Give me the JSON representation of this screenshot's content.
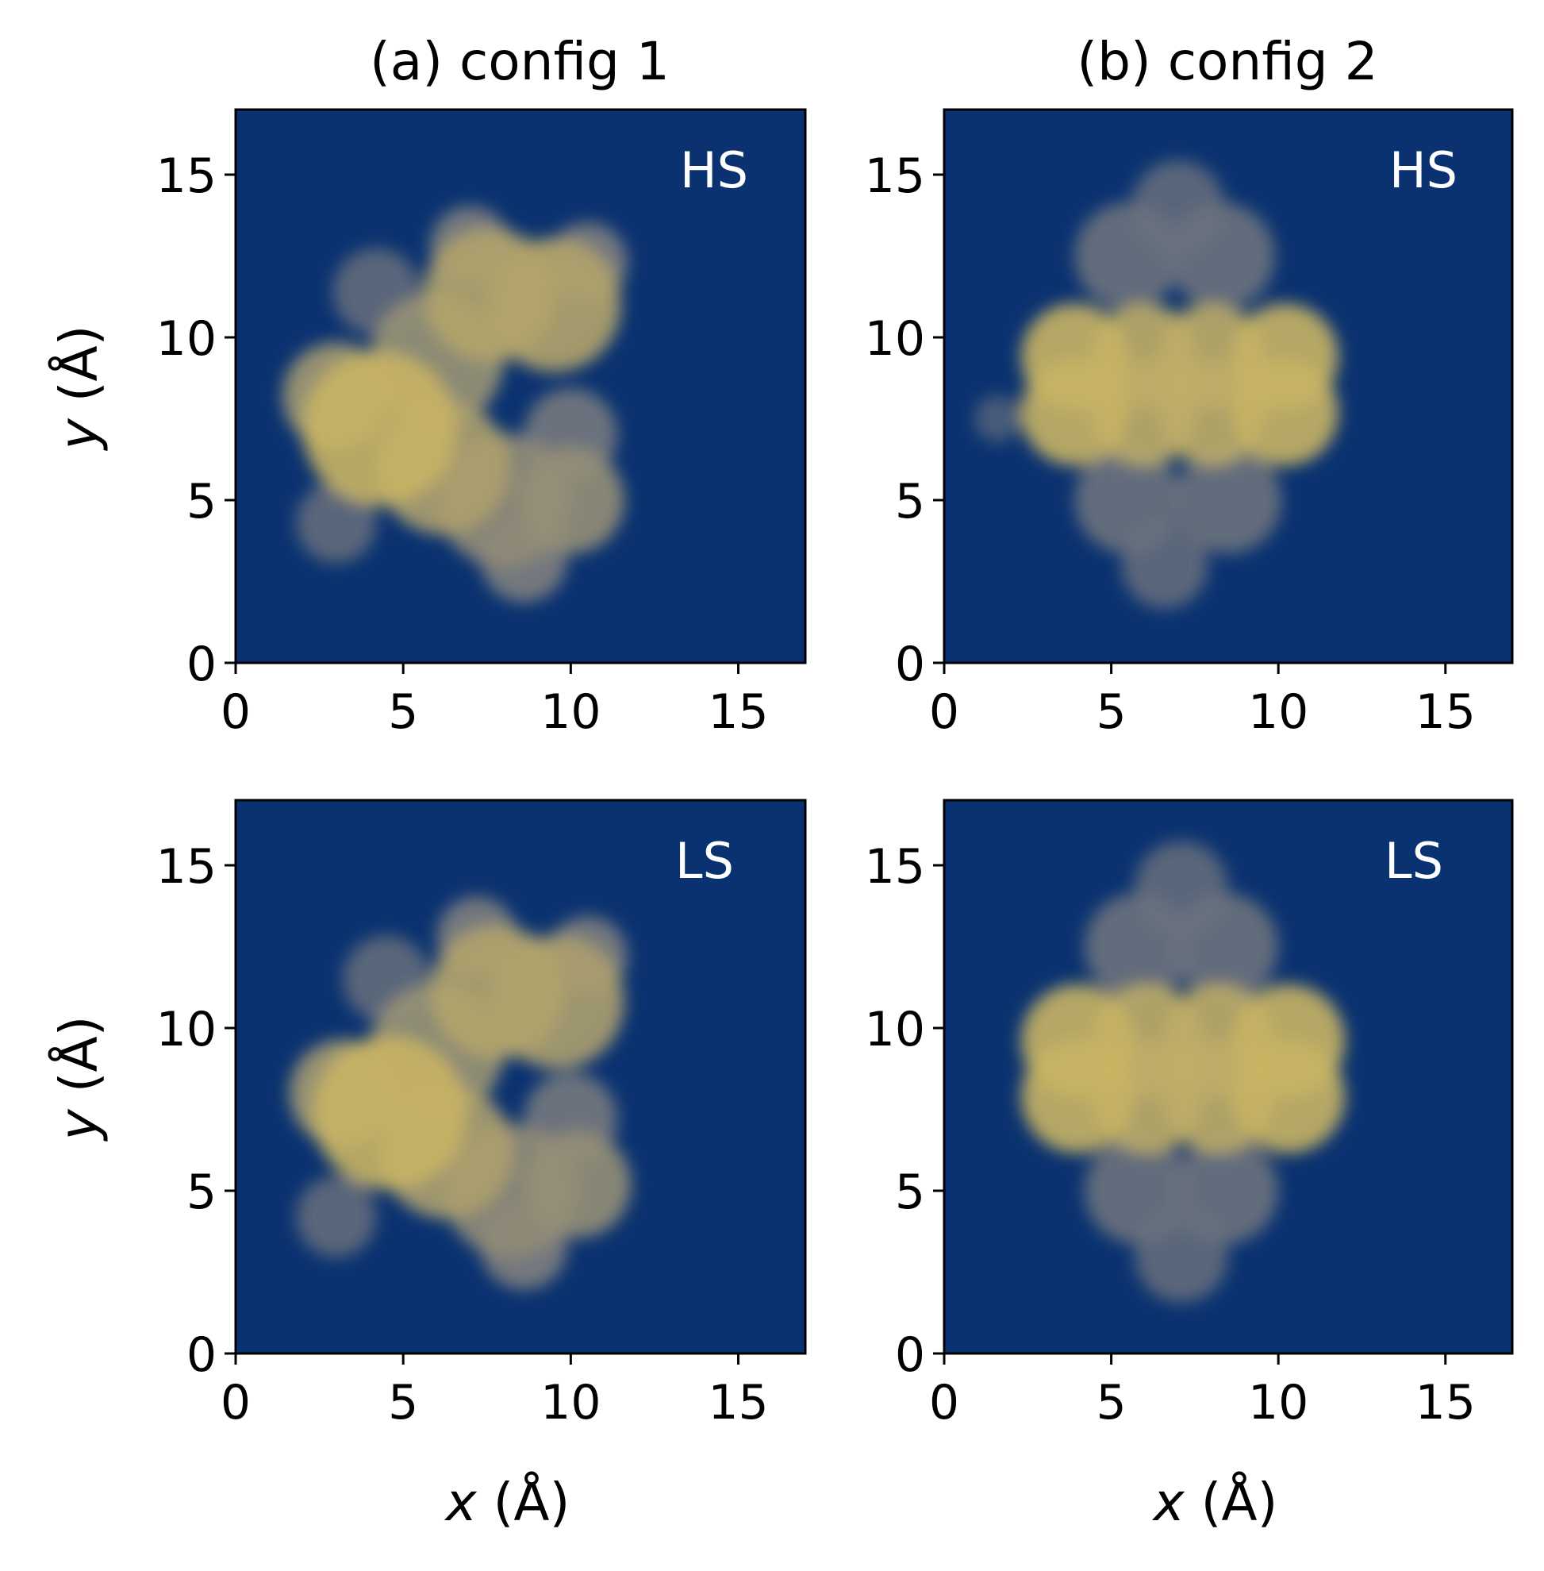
{
  "figure": {
    "column_titles": [
      "(a) config 1",
      "(b) config 2"
    ],
    "xlabel_var": "x",
    "xlabel_unit": " (Å)",
    "ylabel_var": "y",
    "ylabel_unit": " (Å)",
    "colors": {
      "background": "#0a3270",
      "high": "#c8b464",
      "mid": "#7f7f7f"
    }
  },
  "chart_data": [
    {
      "type": "heatmap",
      "panel": "(a) config 1",
      "state": "HS",
      "xlim": [
        0,
        17
      ],
      "ylim": [
        0,
        17
      ],
      "xticks": [
        0,
        5,
        10,
        15
      ],
      "yticks": [
        0,
        5,
        10,
        15
      ],
      "colormap": "cividis",
      "blobs": [
        {
          "x": 4.3,
          "y": 7.2,
          "r": 2.3,
          "v": 1.0
        },
        {
          "x": 6.2,
          "y": 6.0,
          "r": 2.0,
          "v": 0.85
        },
        {
          "x": 3.0,
          "y": 8.2,
          "r": 1.6,
          "v": 0.8
        },
        {
          "x": 7.6,
          "y": 11.3,
          "r": 2.0,
          "v": 0.88
        },
        {
          "x": 9.5,
          "y": 11.0,
          "r": 2.0,
          "v": 0.88
        },
        {
          "x": 6.0,
          "y": 9.3,
          "r": 2.0,
          "v": 0.75
        },
        {
          "x": 8.0,
          "y": 5.0,
          "r": 2.0,
          "v": 0.7
        },
        {
          "x": 10.0,
          "y": 5.0,
          "r": 1.6,
          "v": 0.72
        },
        {
          "x": 8.6,
          "y": 3.2,
          "r": 1.3,
          "v": 0.6
        },
        {
          "x": 3.0,
          "y": 4.3,
          "r": 1.2,
          "v": 0.45
        },
        {
          "x": 4.2,
          "y": 11.4,
          "r": 1.3,
          "v": 0.45
        },
        {
          "x": 10.0,
          "y": 7.0,
          "r": 1.4,
          "v": 0.55
        },
        {
          "x": 7.0,
          "y": 12.8,
          "r": 1.2,
          "v": 0.6
        },
        {
          "x": 10.5,
          "y": 12.3,
          "r": 1.2,
          "v": 0.6
        }
      ]
    },
    {
      "type": "heatmap",
      "panel": "(b) config 2",
      "state": "HS",
      "xlim": [
        0,
        17
      ],
      "ylim": [
        0,
        17
      ],
      "xticks": [
        0,
        5,
        10,
        15
      ],
      "yticks": [
        0,
        5,
        10,
        15
      ],
      "colormap": "cividis",
      "blobs": [
        {
          "x": 3.9,
          "y": 9.4,
          "r": 1.6,
          "v": 1.0
        },
        {
          "x": 6.0,
          "y": 9.4,
          "r": 1.6,
          "v": 0.95
        },
        {
          "x": 8.0,
          "y": 9.4,
          "r": 1.6,
          "v": 0.95
        },
        {
          "x": 10.2,
          "y": 9.4,
          "r": 1.6,
          "v": 1.0
        },
        {
          "x": 3.9,
          "y": 7.7,
          "r": 1.6,
          "v": 1.0
        },
        {
          "x": 6.0,
          "y": 7.7,
          "r": 1.6,
          "v": 0.95
        },
        {
          "x": 8.0,
          "y": 7.7,
          "r": 1.6,
          "v": 0.95
        },
        {
          "x": 10.2,
          "y": 7.7,
          "r": 1.6,
          "v": 1.0
        },
        {
          "x": 5.5,
          "y": 12.5,
          "r": 1.6,
          "v": 0.5
        },
        {
          "x": 8.3,
          "y": 12.5,
          "r": 1.6,
          "v": 0.5
        },
        {
          "x": 7.0,
          "y": 14.0,
          "r": 1.4,
          "v": 0.45
        },
        {
          "x": 5.5,
          "y": 5.0,
          "r": 1.6,
          "v": 0.5
        },
        {
          "x": 8.5,
          "y": 5.0,
          "r": 1.6,
          "v": 0.5
        },
        {
          "x": 6.6,
          "y": 3.0,
          "r": 1.3,
          "v": 0.45
        },
        {
          "x": 1.6,
          "y": 7.5,
          "r": 0.7,
          "v": 0.35
        }
      ]
    },
    {
      "type": "heatmap",
      "panel": "(a) config 1",
      "state": "LS",
      "xlim": [
        0,
        17
      ],
      "ylim": [
        0,
        17
      ],
      "xticks": [
        0,
        5,
        10,
        15
      ],
      "yticks": [
        0,
        5,
        10,
        15
      ],
      "colormap": "cividis",
      "blobs": [
        {
          "x": 4.6,
          "y": 7.4,
          "r": 2.3,
          "v": 1.0
        },
        {
          "x": 6.3,
          "y": 6.2,
          "r": 2.0,
          "v": 0.85
        },
        {
          "x": 3.2,
          "y": 8.0,
          "r": 1.6,
          "v": 0.8
        },
        {
          "x": 7.8,
          "y": 11.1,
          "r": 2.0,
          "v": 0.88
        },
        {
          "x": 9.6,
          "y": 10.8,
          "r": 2.0,
          "v": 0.85
        },
        {
          "x": 6.0,
          "y": 9.3,
          "r": 2.0,
          "v": 0.75
        },
        {
          "x": 8.2,
          "y": 5.0,
          "r": 2.0,
          "v": 0.7
        },
        {
          "x": 10.2,
          "y": 5.2,
          "r": 1.6,
          "v": 0.72
        },
        {
          "x": 8.6,
          "y": 3.3,
          "r": 1.3,
          "v": 0.6
        },
        {
          "x": 3.0,
          "y": 4.2,
          "r": 1.2,
          "v": 0.45
        },
        {
          "x": 4.5,
          "y": 11.5,
          "r": 1.3,
          "v": 0.45
        },
        {
          "x": 10.0,
          "y": 7.2,
          "r": 1.4,
          "v": 0.55
        },
        {
          "x": 7.2,
          "y": 12.8,
          "r": 1.2,
          "v": 0.6
        },
        {
          "x": 10.5,
          "y": 12.2,
          "r": 1.2,
          "v": 0.6
        }
      ]
    },
    {
      "type": "heatmap",
      "panel": "(b) config 2",
      "state": "LS",
      "xlim": [
        0,
        17
      ],
      "ylim": [
        0,
        17
      ],
      "xticks": [
        0,
        5,
        10,
        15
      ],
      "yticks": [
        0,
        5,
        10,
        15
      ],
      "colormap": "cividis",
      "blobs": [
        {
          "x": 4.0,
          "y": 9.6,
          "r": 1.7,
          "v": 1.0
        },
        {
          "x": 6.1,
          "y": 9.6,
          "r": 1.7,
          "v": 0.95
        },
        {
          "x": 8.2,
          "y": 9.6,
          "r": 1.7,
          "v": 0.95
        },
        {
          "x": 10.3,
          "y": 9.6,
          "r": 1.7,
          "v": 1.0
        },
        {
          "x": 4.0,
          "y": 7.9,
          "r": 1.7,
          "v": 1.0
        },
        {
          "x": 6.1,
          "y": 7.9,
          "r": 1.7,
          "v": 0.95
        },
        {
          "x": 8.2,
          "y": 7.9,
          "r": 1.7,
          "v": 0.95
        },
        {
          "x": 10.3,
          "y": 7.9,
          "r": 1.7,
          "v": 1.0
        },
        {
          "x": 5.8,
          "y": 12.5,
          "r": 1.6,
          "v": 0.5
        },
        {
          "x": 8.4,
          "y": 12.5,
          "r": 1.6,
          "v": 0.5
        },
        {
          "x": 7.1,
          "y": 14.3,
          "r": 1.4,
          "v": 0.45
        },
        {
          "x": 5.8,
          "y": 5.0,
          "r": 1.6,
          "v": 0.5
        },
        {
          "x": 8.4,
          "y": 5.0,
          "r": 1.6,
          "v": 0.5
        },
        {
          "x": 7.1,
          "y": 3.0,
          "r": 1.4,
          "v": 0.45
        }
      ]
    }
  ]
}
